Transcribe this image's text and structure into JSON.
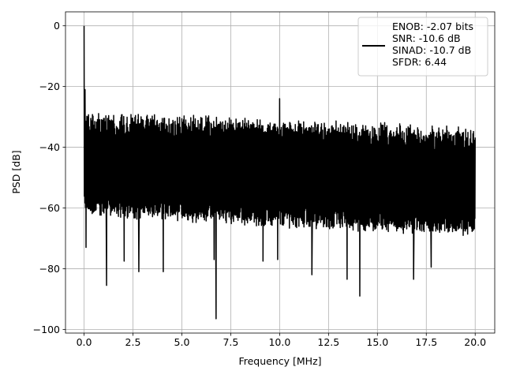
{
  "chart_data": {
    "type": "line",
    "title": "",
    "xlabel": "Frequency [MHz]",
    "ylabel": "PSD [dB]",
    "xlim": [
      -0.95,
      21.0
    ],
    "ylim": [
      -101.2,
      4.6
    ],
    "xticks": [
      0.0,
      2.5,
      5.0,
      7.5,
      10.0,
      12.5,
      15.0,
      17.5,
      20.0
    ],
    "xtick_labels": [
      "0.0",
      "2.5",
      "5.0",
      "7.5",
      "10.0",
      "12.5",
      "15.0",
      "17.5",
      "20.0"
    ],
    "yticks": [
      0,
      -20,
      -40,
      -60,
      -80,
      -100
    ],
    "ytick_labels": [
      "0",
      "−20",
      "−40",
      "−60",
      "−80",
      "−100"
    ],
    "grid": true,
    "legend": {
      "location": "upper right",
      "lines": [
        "ENOB: -2.07 bits",
        "SNR: -10.6 dB",
        "SINAD: -10.7 dB",
        "SFDR: 6.44"
      ]
    },
    "series": [
      {
        "color": "#000000",
        "noise_floor": {
          "x_start": 0.0,
          "x_end": 20.0,
          "upper_start_db": -28,
          "upper_end_db": -33,
          "lower_start_db": -63,
          "lower_end_db": -70
        },
        "peaks": [
          {
            "x": 0.0,
            "y": 0.0
          },
          {
            "x": 0.05,
            "y": -21.0
          },
          {
            "x": 10.0,
            "y": -24.0
          }
        ],
        "dips": [
          {
            "x": 0.1,
            "y": -73.0
          },
          {
            "x": 1.15,
            "y": -85.5
          },
          {
            "x": 2.05,
            "y": -77.5
          },
          {
            "x": 2.8,
            "y": -81.0
          },
          {
            "x": 4.05,
            "y": -81.0
          },
          {
            "x": 6.65,
            "y": -77.0
          },
          {
            "x": 6.75,
            "y": -96.5
          },
          {
            "x": 9.15,
            "y": -77.5
          },
          {
            "x": 9.9,
            "y": -77.0
          },
          {
            "x": 11.65,
            "y": -82.0
          },
          {
            "x": 13.45,
            "y": -83.5
          },
          {
            "x": 14.1,
            "y": -89.0
          },
          {
            "x": 16.85,
            "y": -83.5
          },
          {
            "x": 17.75,
            "y": -79.5
          }
        ]
      }
    ]
  }
}
